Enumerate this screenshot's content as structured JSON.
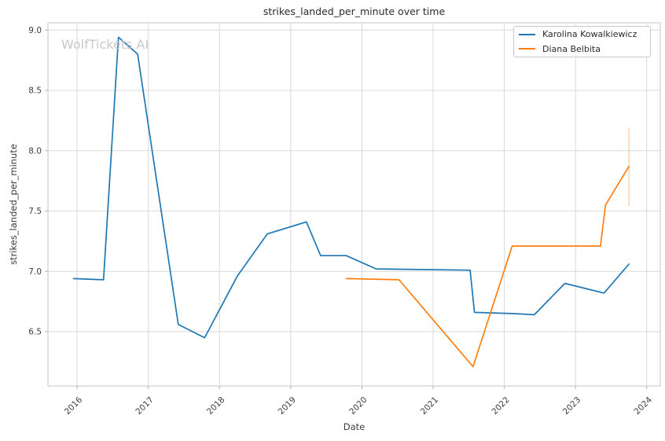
{
  "title": "strikes_landed_per_minute over time",
  "watermark": "WolfTickets AI",
  "axes": {
    "xlabel": "Date",
    "ylabel": "strikes_landed_per_minute"
  },
  "legend": {
    "position": "upper right",
    "entries": [
      "Karolina Kowalkiewicz",
      "Diana Belbita"
    ]
  },
  "colors": {
    "series_blue": "#1f77b4",
    "series_orange": "#ff7f0e",
    "grid": "#d9d9d9",
    "frame": "#cfcfcf",
    "text": "#3d3d3d",
    "watermark": "#c9c9c9"
  },
  "chart_data": {
    "type": "line",
    "title": "strikes_landed_per_minute over time",
    "xlabel": "Date",
    "ylabel": "strikes_landed_per_minute",
    "grid": true,
    "legend_position": "upper right",
    "xlim": [
      2015.59,
      2024.19
    ],
    "ylim": [
      6.05,
      9.06
    ],
    "x_ticks": [
      2016,
      2017,
      2018,
      2019,
      2020,
      2021,
      2022,
      2023,
      2024
    ],
    "x_tick_labels": [
      "2016",
      "2017",
      "2018",
      "2019",
      "2020",
      "2021",
      "2022",
      "2023",
      "2024"
    ],
    "y_ticks": [
      6.5,
      7.0,
      7.5,
      8.0,
      8.5,
      9.0
    ],
    "y_tick_labels": [
      "6.5",
      "7.0",
      "7.5",
      "8.0",
      "8.5",
      "9.0"
    ],
    "series": [
      {
        "name": "Karolina Kowalkiewicz",
        "color": "#1f77b4",
        "x": [
          2015.95,
          2016.37,
          2016.58,
          2016.85,
          2017.42,
          2017.79,
          2018.25,
          2018.67,
          2019.22,
          2019.42,
          2019.78,
          2020.2,
          2021.52,
          2021.58,
          2022.12,
          2022.42,
          2022.85,
          2023.4,
          2023.75
        ],
        "y": [
          6.94,
          6.93,
          8.94,
          8.8,
          6.56,
          6.45,
          6.96,
          7.31,
          7.41,
          7.13,
          7.13,
          7.02,
          7.01,
          6.66,
          6.65,
          6.64,
          6.9,
          6.82,
          7.06
        ]
      },
      {
        "name": "Diana Belbita",
        "color": "#ff7f0e",
        "x": [
          2019.78,
          2020.52,
          2021.56,
          2022.11,
          2023.35,
          2023.42,
          2023.75
        ],
        "y": [
          6.94,
          6.93,
          6.21,
          7.21,
          7.21,
          7.55,
          7.87
        ],
        "error_bar": {
          "x": 2023.75,
          "low": 7.54,
          "high": 8.19,
          "opacity": 0.35
        }
      }
    ]
  }
}
